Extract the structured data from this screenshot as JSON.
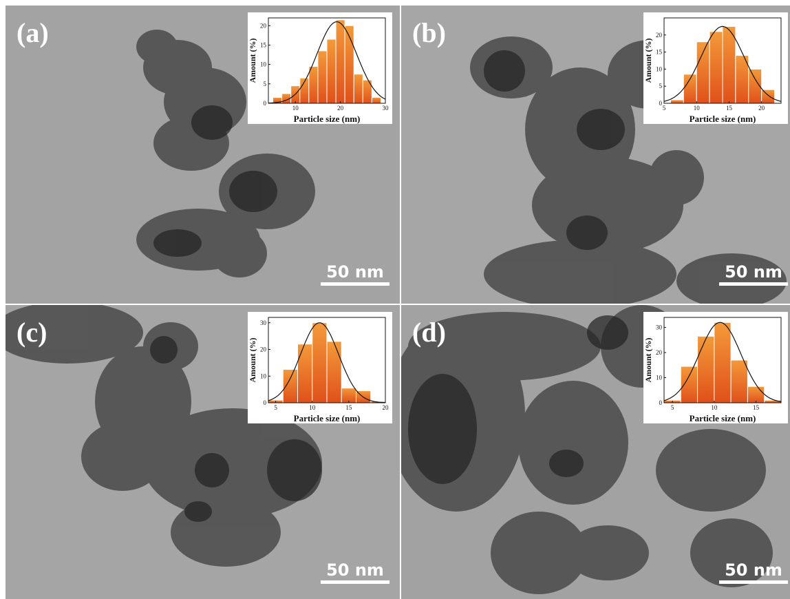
{
  "figure": {
    "panels": [
      {
        "label": "(a)",
        "scale_bar": "50 nm"
      },
      {
        "label": "(b)",
        "scale_bar": "50 nm"
      },
      {
        "label": "(c)",
        "scale_bar": "50 nm"
      },
      {
        "label": "(d)",
        "scale_bar": "50 nm"
      }
    ]
  },
  "chart_data": [
    {
      "type": "bar",
      "panel": "(a)",
      "title": "",
      "xlabel": "Particle size (nm)",
      "ylabel": "Amount (%)",
      "xlim": [
        4,
        30
      ],
      "ylim": [
        0,
        22
      ],
      "xticks": [
        10,
        20,
        30
      ],
      "yticks": [
        0,
        5,
        10,
        15,
        20
      ],
      "x": [
        6,
        8,
        10,
        12,
        14,
        16,
        18,
        20,
        22,
        24,
        26,
        28
      ],
      "values": [
        1.5,
        2.5,
        4.5,
        6.5,
        9.5,
        13.5,
        16.5,
        21.5,
        20,
        7.5,
        6,
        1.5
      ],
      "fit": {
        "type": "gaussian",
        "mean": 19.2,
        "sigma": 4.4,
        "peak": 21
      },
      "bar_color": "#f07a20"
    },
    {
      "type": "bar",
      "panel": "(b)",
      "title": "",
      "xlabel": "Particle size (nm)",
      "ylabel": "Amount (%)",
      "xlim": [
        5,
        23
      ],
      "ylim": [
        0,
        25
      ],
      "xticks": [
        5,
        10,
        15,
        20
      ],
      "yticks": [
        0,
        5,
        10,
        15,
        20
      ],
      "x": [
        7,
        9,
        11,
        13,
        15,
        17,
        19,
        21
      ],
      "values": [
        1,
        8.5,
        18,
        21,
        22.5,
        14,
        10,
        4
      ],
      "fit": {
        "type": "gaussian",
        "mean": 14,
        "sigma": 3.3,
        "peak": 22.5
      },
      "bar_color": "#f07a20"
    },
    {
      "type": "bar",
      "panel": "(c)",
      "title": "",
      "xlabel": "Particle size (nm)",
      "ylabel": "Amount (%)",
      "xlim": [
        4,
        20
      ],
      "ylim": [
        0,
        32
      ],
      "xticks": [
        5,
        10,
        15,
        20
      ],
      "yticks": [
        0,
        10,
        20,
        30
      ],
      "x": [
        5,
        7,
        9,
        11,
        13,
        15,
        17,
        19
      ],
      "values": [
        1,
        12.5,
        22,
        30,
        23,
        5.5,
        4.5,
        0.5
      ],
      "fit": {
        "type": "gaussian",
        "mean": 11,
        "sigma": 2.6,
        "peak": 30
      },
      "bar_color": "#f07a20"
    },
    {
      "type": "bar",
      "panel": "(d)",
      "title": "",
      "xlabel": "Particle size (nm)",
      "ylabel": "Amount (%)",
      "xlim": [
        4,
        18
      ],
      "ylim": [
        0,
        34
      ],
      "xticks": [
        5,
        10,
        15
      ],
      "yticks": [
        0,
        10,
        20,
        30
      ],
      "x": [
        5,
        7,
        9,
        11,
        13,
        15,
        17
      ],
      "values": [
        1,
        14.5,
        26.5,
        32,
        17,
        6.5,
        1
      ],
      "fit": {
        "type": "gaussian",
        "mean": 10.7,
        "sigma": 2.5,
        "peak": 32
      },
      "bar_color": "#f07a20"
    }
  ]
}
